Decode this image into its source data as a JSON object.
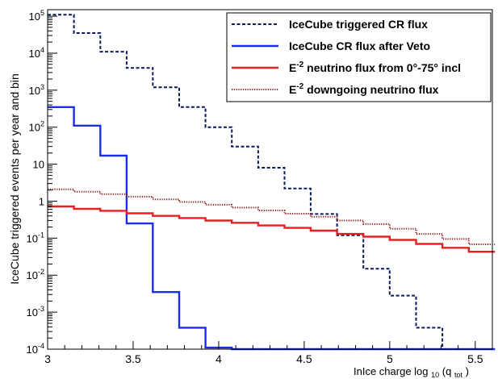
{
  "chart_data": {
    "type": "line",
    "step": true,
    "xlabel": "InIce charge log",
    "xlabel_sub": "10",
    "xlabel_arg": "(q",
    "xlabel_arg_sub": "tot",
    "xlabel_close": ")",
    "ylabel": "IceCube triggered events per year and bin",
    "xlim": [
      3.0,
      5.6
    ],
    "ylim": [
      0.0001,
      150000
    ],
    "yscale": "log",
    "grid": false,
    "legend_position": "top-right",
    "x_ticks": [
      {
        "v": 3,
        "label": "3"
      },
      {
        "v": 3.5,
        "label": "3.5"
      },
      {
        "v": 4,
        "label": "4"
      },
      {
        "v": 4.5,
        "label": "4.5"
      },
      {
        "v": 5,
        "label": "5"
      },
      {
        "v": 5.5,
        "label": "5.5"
      }
    ],
    "y_ticks": [
      {
        "v": 0.0001,
        "base": "10",
        "exp": "-4"
      },
      {
        "v": 0.001,
        "base": "10",
        "exp": "-3"
      },
      {
        "v": 0.01,
        "base": "10",
        "exp": "-2"
      },
      {
        "v": 0.1,
        "base": "10",
        "exp": "-1"
      },
      {
        "v": 1,
        "base": "1",
        "exp": ""
      },
      {
        "v": 10,
        "base": "10",
        "exp": ""
      },
      {
        "v": 100,
        "base": "10",
        "exp": "2"
      },
      {
        "v": 1000,
        "base": "10",
        "exp": "3"
      },
      {
        "v": 10000,
        "base": "10",
        "exp": "4"
      },
      {
        "v": 100000,
        "base": "10",
        "exp": "5"
      }
    ],
    "bin_edges": [
      3.0,
      3.154,
      3.308,
      3.462,
      3.615,
      3.769,
      3.923,
      4.077,
      4.231,
      4.385,
      4.538,
      4.692,
      4.846,
      5.0,
      5.154,
      5.308,
      5.462,
      5.615
    ],
    "series": [
      {
        "label_main": "IceCube triggered CR flux",
        "label_sup": "",
        "label_rest": "",
        "color": "#0a1a5c",
        "style": "dashed",
        "values": [
          110000,
          35000,
          11000,
          4000,
          1200,
          350,
          100,
          30,
          8,
          2.2,
          0.45,
          0.12,
          0.015,
          0.0028,
          0.00038,
          0.0001,
          0.0001
        ]
      },
      {
        "label_main": "IceCube CR flux after Veto",
        "label_sup": "",
        "label_rest": "",
        "color": "#1a2ee6",
        "style": "solid",
        "values": [
          350,
          110,
          17,
          0.25,
          0.0035,
          0.00038,
          0.00011,
          0.0001,
          0.0001,
          0.0001,
          0.0001,
          0.0001,
          0.0001,
          0.0001,
          0.0001,
          0.0001,
          0.0001
        ]
      },
      {
        "label_main": "E",
        "label_sup": "-2",
        "label_rest": " neutrino flux from 0°-75° incl",
        "color": "#e82020",
        "style": "solid",
        "values": [
          0.72,
          0.62,
          0.55,
          0.47,
          0.4,
          0.35,
          0.3,
          0.26,
          0.22,
          0.19,
          0.16,
          0.13,
          0.11,
          0.09,
          0.07,
          0.055,
          0.043
        ]
      },
      {
        "label_main": "E",
        "label_sup": "-2",
        "label_rest": " downgoing neutrino flux",
        "color": "#8b1a1a",
        "style": "dotted",
        "values": [
          2.1,
          1.8,
          1.55,
          1.32,
          1.12,
          0.95,
          0.8,
          0.67,
          0.56,
          0.46,
          0.38,
          0.3,
          0.24,
          0.18,
          0.13,
          0.095,
          0.068
        ]
      }
    ]
  }
}
